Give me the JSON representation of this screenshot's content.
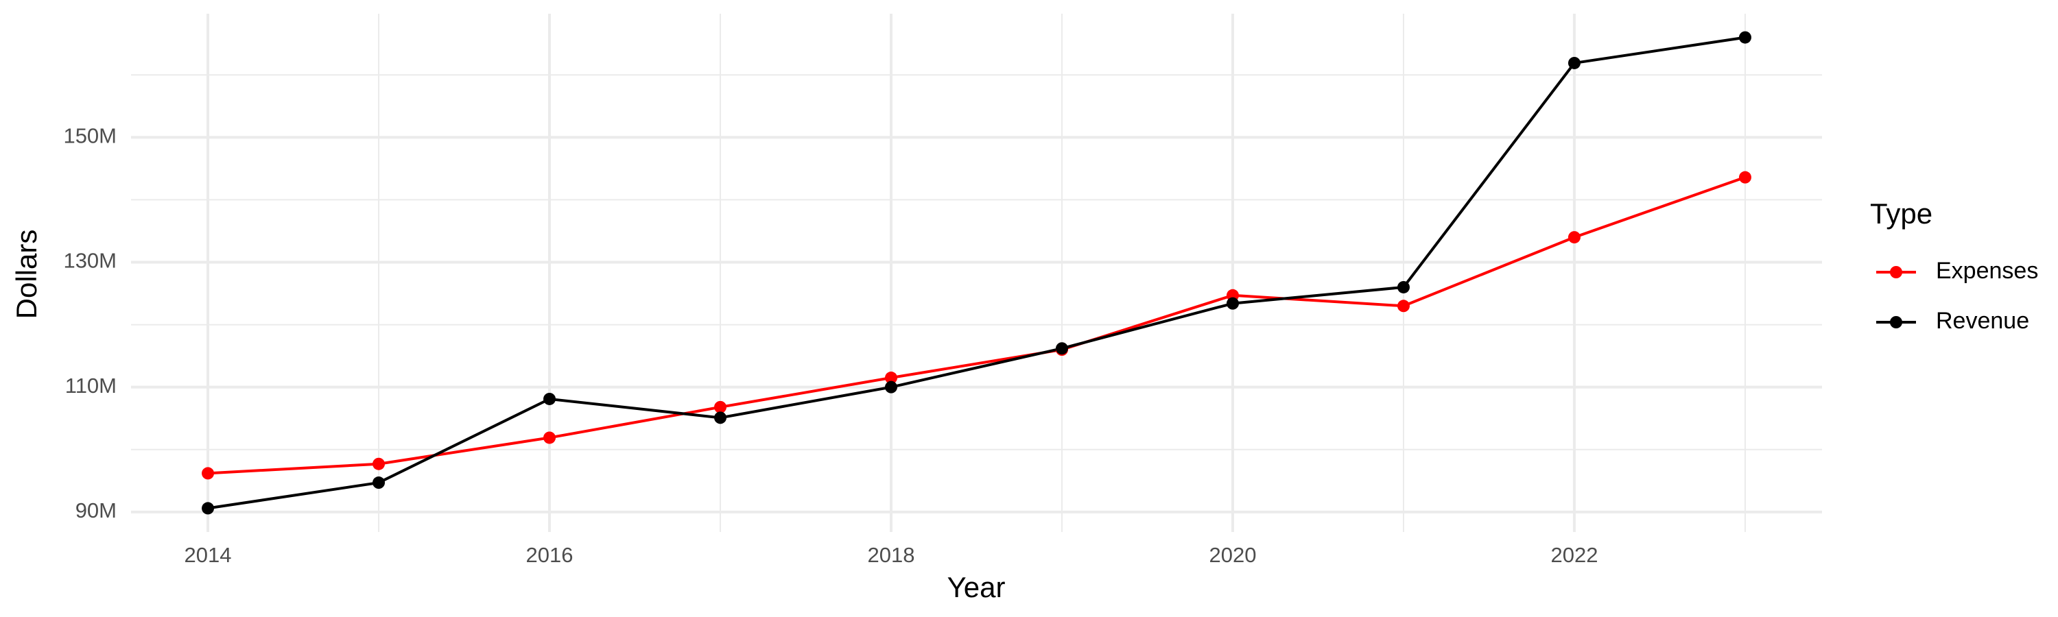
{
  "chart_data": {
    "type": "line",
    "x_label": "Year",
    "y_label": "Dollars",
    "legend_title": "Type",
    "x": [
      2014,
      2015,
      2016,
      2017,
      2018,
      2019,
      2020,
      2021,
      2022,
      2023
    ],
    "series": [
      {
        "name": "Expenses",
        "color": "#ff0000",
        "values": [
          96200000,
          97700000,
          101900000,
          106800000,
          111500000,
          116000000,
          124700000,
          123000000,
          134000000,
          143600000
        ]
      },
      {
        "name": "Revenue",
        "color": "#000000",
        "values": [
          90600000,
          94700000,
          108100000,
          105100000,
          110000000,
          116200000,
          123400000,
          126000000,
          161900000,
          166000000
        ]
      }
    ],
    "xlim": [
      2013.55,
      2023.45
    ],
    "xticks": [
      2014,
      2016,
      2018,
      2020,
      2022
    ],
    "ylim": [
      86800000,
      169800000
    ],
    "yticks": [
      {
        "value": 90000000,
        "label": "90M"
      },
      {
        "value": 110000000,
        "label": "110M"
      },
      {
        "value": 130000000,
        "label": "130M"
      },
      {
        "value": 150000000,
        "label": "150M"
      }
    ],
    "grid": true,
    "legend_position": "right"
  }
}
